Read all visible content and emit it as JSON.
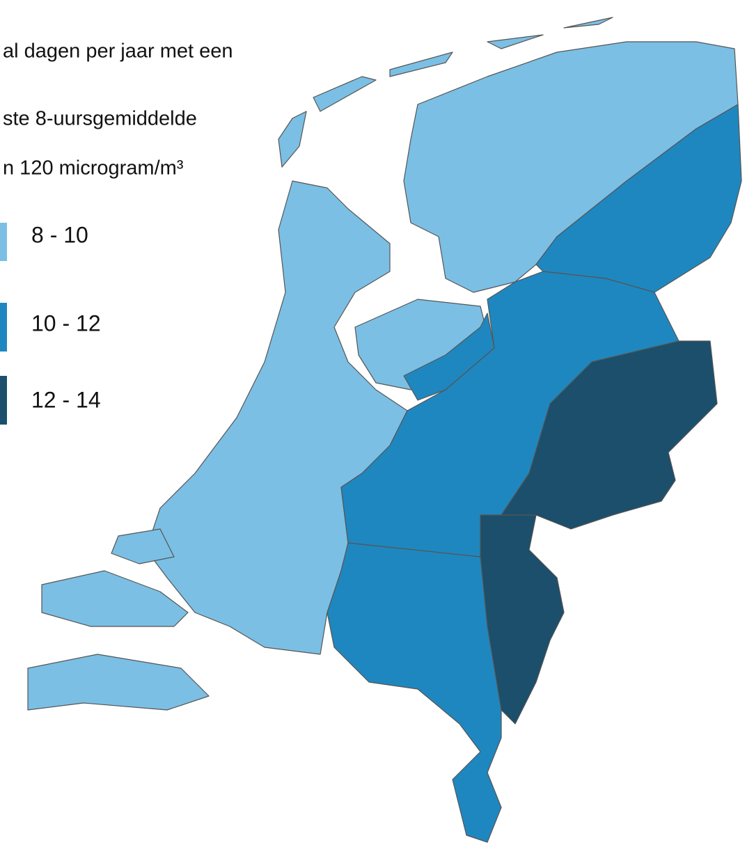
{
  "title_lines": [
    "al dagen per jaar met een",
    "ste 8-uursgemiddelde",
    "n 120 microgram/m³"
  ],
  "legend": [
    {
      "label": "8 - 10",
      "color": "#7bbfe4"
    },
    {
      "label": "10 - 12",
      "color": "#1f87bf"
    },
    {
      "label": "12 - 14",
      "color": "#1b4f6b"
    }
  ]
}
